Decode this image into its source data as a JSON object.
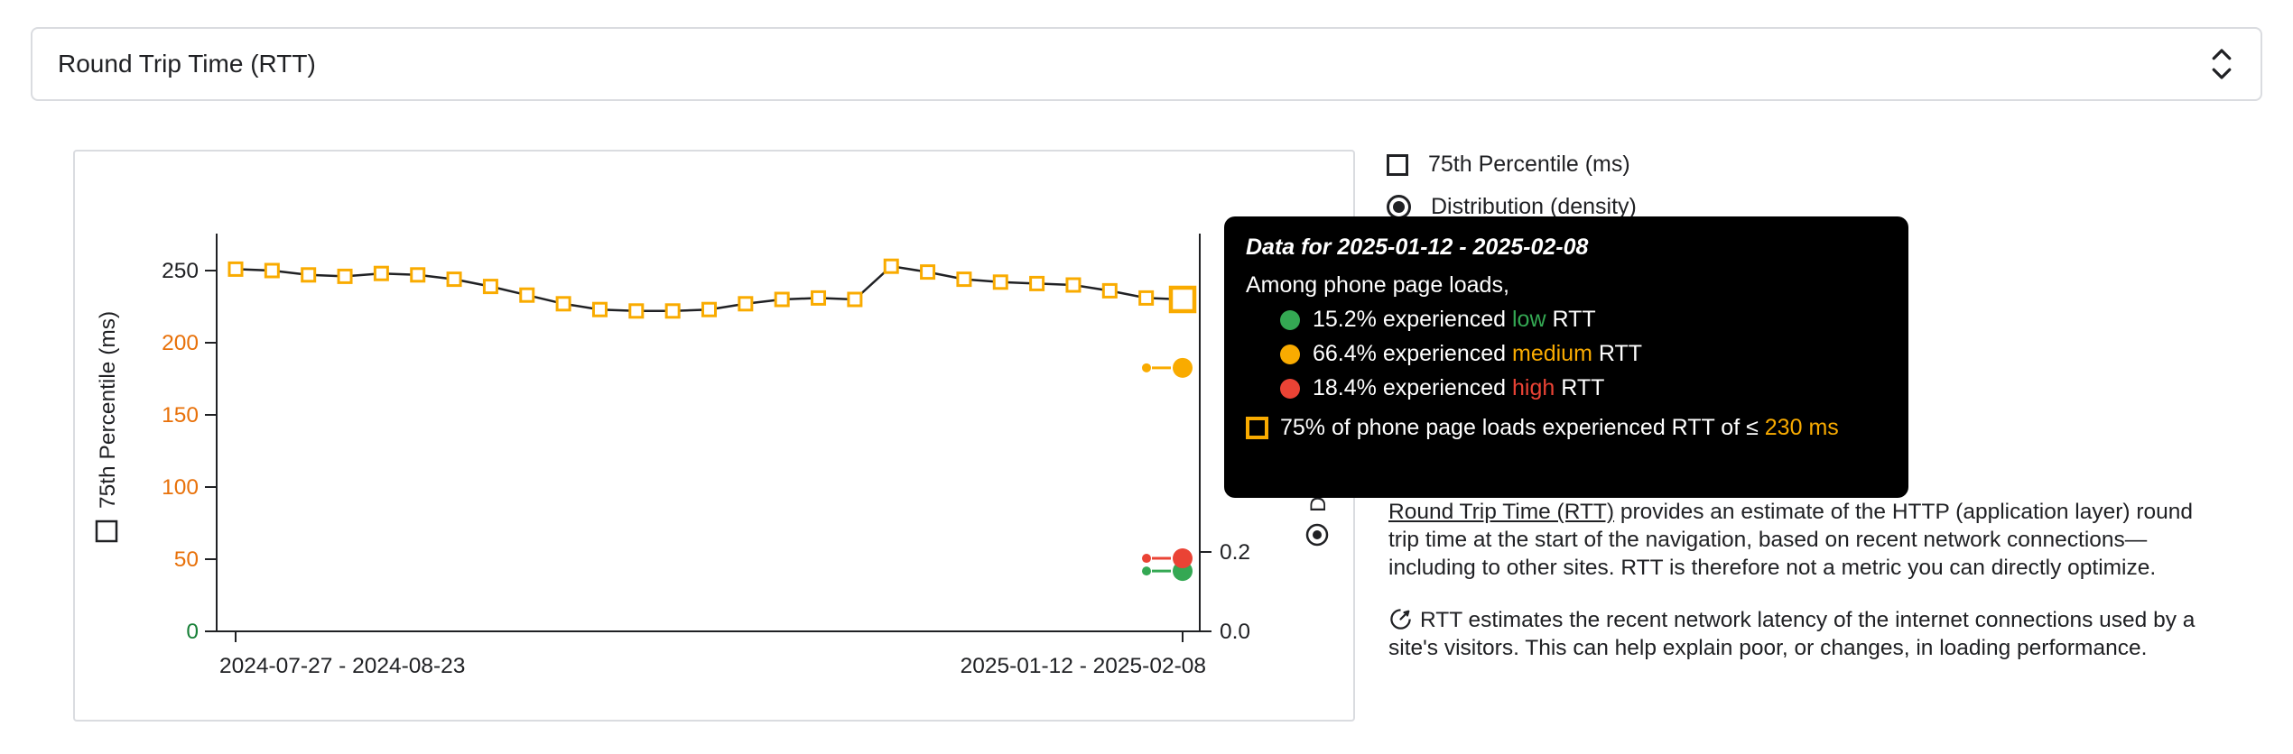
{
  "metric_selector": {
    "label": "Round Trip Time (RTT)"
  },
  "legend": {
    "percentile_label": "75th Percentile (ms)",
    "distribution_label": "Distribution (density)"
  },
  "chart_data": {
    "type": "line",
    "y_label": "75th Percentile (ms)",
    "y2_label": "Distribution (density)",
    "x_first_label": "2024-07-27 - 2024-08-23",
    "x_last_label": "2025-01-12 - 2025-02-08",
    "ylim": [
      0,
      275
    ],
    "y2lim_visible": [
      0,
      0.25
    ],
    "grid": false,
    "line_color": "#202124",
    "marker_color": "#f9ab00",
    "values_ms": [
      251,
      250,
      247,
      246,
      248,
      247,
      244,
      239,
      233,
      227,
      223,
      222,
      222,
      223,
      227,
      230,
      231,
      230,
      253,
      249,
      244,
      242,
      241,
      240,
      236,
      231,
      230
    ],
    "selected_value_ms": 230,
    "y_ticks": [
      {
        "label": "0",
        "value": 0,
        "color": "#188038"
      },
      {
        "label": "50",
        "value": 50,
        "color": "#e8710a"
      },
      {
        "label": "100",
        "value": 100,
        "color": "#e8710a"
      },
      {
        "label": "150",
        "value": 150,
        "color": "#e8710a"
      },
      {
        "label": "200",
        "value": 200,
        "color": "#e8710a"
      },
      {
        "label": "250",
        "value": 250,
        "color": "#202124"
      }
    ],
    "y2_ticks": [
      {
        "label": "0.0",
        "value": 0
      },
      {
        "label": "0.2",
        "value": 0.2
      }
    ],
    "distribution": [
      {
        "name": "low",
        "density": 0.152,
        "color": "#34a853"
      },
      {
        "name": "medium",
        "density": 0.664,
        "color": "#f9ab00"
      },
      {
        "name": "high",
        "density": 0.184,
        "color": "#ea4335"
      }
    ]
  },
  "tooltip": {
    "title": "Data for 2025-01-12 - 2025-02-08",
    "subtitle": "Among phone page loads,",
    "rows": [
      {
        "pct": "15.2%",
        "mid": " experienced ",
        "category": "low",
        "suffix": " RTT",
        "color": "#34a853"
      },
      {
        "pct": "66.4%",
        "mid": " experienced ",
        "category": "medium",
        "suffix": " RTT",
        "color": "#f9ab00"
      },
      {
        "pct": "18.4%",
        "mid": " experienced ",
        "category": "high",
        "suffix": " RTT",
        "color": "#ea4335"
      }
    ],
    "p75_row": {
      "prefix": "75% of phone page loads experienced RTT of ≤ ",
      "value": "230 ms",
      "color": "#f9ab00"
    }
  },
  "description": {
    "link_text": "Round Trip Time (RTT)",
    "body": " provides an estimate of the HTTP (application layer) round trip time at the start of the navigation, based on recent network connections—including to other sites. RTT is therefore not a metric you can directly optimize.",
    "note": "RTT estimates the recent network latency of the internet connections used by a site's visitors. This can help explain poor, or changes, in loading performance."
  }
}
